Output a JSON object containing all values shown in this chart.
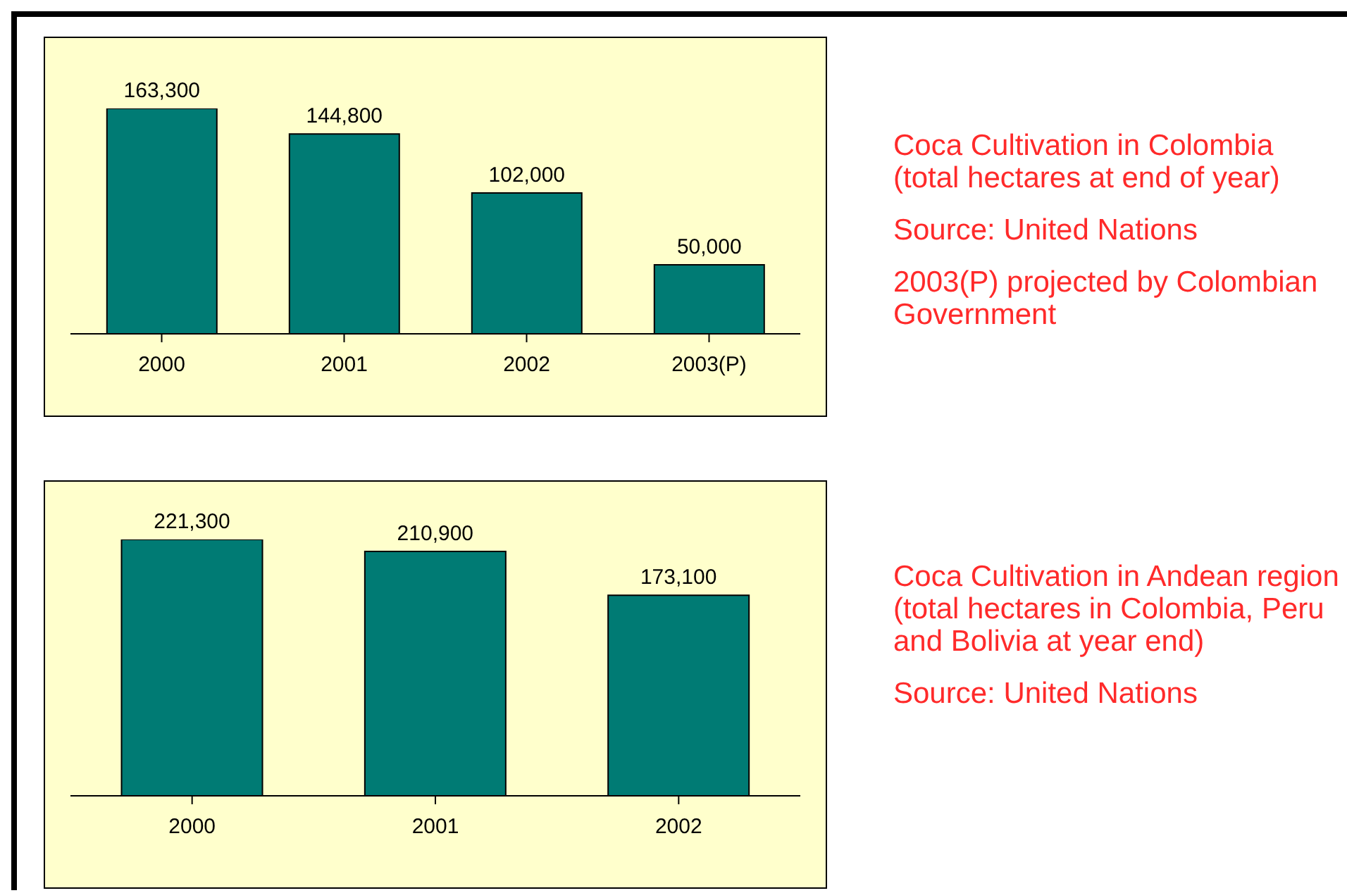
{
  "chart_data": [
    {
      "type": "bar",
      "annotations": [
        "Coca Cultivation in Colombia\n(total hectares at end of year)",
        "Source: United Nations",
        "2003(P) projected by Colombian Government"
      ],
      "categories": [
        "2000",
        "2001",
        "2002",
        "2003(P)"
      ],
      "values": [
        163300,
        144800,
        102000,
        50000
      ],
      "value_labels": [
        "163,300",
        "144,800",
        "102,000",
        "50,000"
      ],
      "color": "#007b74",
      "legend": false,
      "grid": false
    },
    {
      "type": "bar",
      "annotations": [
        "Coca Cultivation in Andean region\n(total hectares in Colombia, Peru and Bolivia at year end)",
        "Source: United Nations"
      ],
      "categories": [
        "2000",
        "2001",
        "2002"
      ],
      "values": [
        221300,
        210900,
        173100
      ],
      "value_labels": [
        "221,300",
        "210,900",
        "173,100"
      ],
      "color": "#007b74",
      "legend": false,
      "grid": false
    }
  ]
}
